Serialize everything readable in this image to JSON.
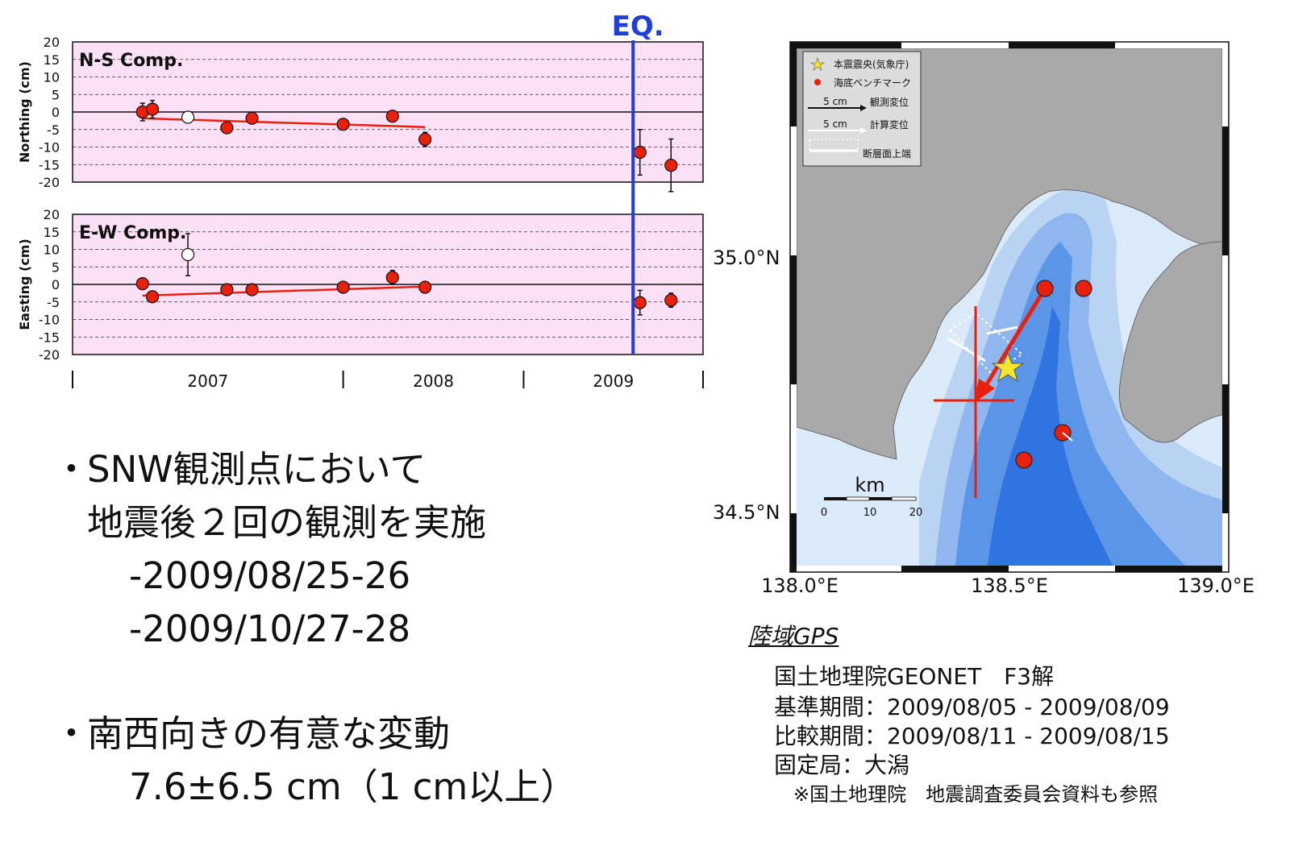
{
  "chart_data": [
    {
      "type": "scatter",
      "title": "N-S Comp.",
      "ylabel": "Northing (cm)",
      "ylim": [
        -20,
        20
      ],
      "yticks": [
        "20",
        "15",
        "10",
        "5",
        "0",
        "-5",
        "-10",
        "-15",
        "-20"
      ],
      "grid": true,
      "points": [
        {
          "x": "2006-11-20",
          "y": 0,
          "err": 2.5,
          "fill": "red"
        },
        {
          "x": "2006-12-10",
          "y": 0.8,
          "err": 2.5,
          "fill": "red"
        },
        {
          "x": "2007-02-20",
          "y": -1.5,
          "err": 1.0,
          "fill": "white"
        },
        {
          "x": "2007-05-10",
          "y": -4.5,
          "err": 1.0,
          "fill": "red"
        },
        {
          "x": "2007-06-30",
          "y": -1.8,
          "err": 1.0,
          "fill": "red"
        },
        {
          "x": "2008-01-01",
          "y": -3.5,
          "err": 1.0,
          "fill": "red"
        },
        {
          "x": "2008-04-10",
          "y": -1.2,
          "err": 1.5,
          "fill": "red"
        },
        {
          "x": "2008-06-15",
          "y": -7.8,
          "err": 2.0,
          "fill": "red"
        },
        {
          "x": "2009-08-25",
          "y": -11.5,
          "err": 6.5,
          "fill": "red"
        },
        {
          "x": "2009-10-27",
          "y": -15.2,
          "err": 7.5,
          "fill": "red"
        }
      ],
      "trend": {
        "x": [
          "2006-11-20",
          "2008-06-15"
        ],
        "y": [
          -1.8,
          -4.3
        ]
      }
    },
    {
      "type": "scatter",
      "title": "E-W Comp.",
      "ylabel": "Easting (cm)",
      "ylim": [
        -20,
        20
      ],
      "yticks": [
        "20",
        "15",
        "10",
        "5",
        "0",
        "-5",
        "-10",
        "-15",
        "-20"
      ],
      "grid": true,
      "xticks": [
        "2007",
        "2008",
        "2009"
      ],
      "points": [
        {
          "x": "2006-11-20",
          "y": 0.2,
          "err": 1.0,
          "fill": "red"
        },
        {
          "x": "2006-12-10",
          "y": -3.5,
          "err": 1.0,
          "fill": "red"
        },
        {
          "x": "2007-02-20",
          "y": 8.5,
          "err": 6.0,
          "fill": "white"
        },
        {
          "x": "2007-05-10",
          "y": -1.5,
          "err": 1.0,
          "fill": "red"
        },
        {
          "x": "2007-06-30",
          "y": -1.5,
          "err": 1.0,
          "fill": "red"
        },
        {
          "x": "2008-01-01",
          "y": -0.8,
          "err": 1.0,
          "fill": "red"
        },
        {
          "x": "2008-04-10",
          "y": 2.0,
          "err": 2.0,
          "fill": "red"
        },
        {
          "x": "2008-06-15",
          "y": -0.8,
          "err": 1.0,
          "fill": "red"
        },
        {
          "x": "2009-08-25",
          "y": -5.2,
          "err": 3.5,
          "fill": "red"
        },
        {
          "x": "2009-10-27",
          "y": -4.5,
          "err": 2.0,
          "fill": "red"
        }
      ],
      "trend": {
        "x": [
          "2006-11-20",
          "2008-06-15"
        ],
        "y": [
          -3.2,
          -0.6
        ]
      }
    }
  ],
  "eq_marker": {
    "label": "EQ.",
    "date": "2009-08-11",
    "color": "#1f3fd8"
  },
  "map": {
    "lat_labels": [
      "35.0°N",
      "34.5°N"
    ],
    "lon_labels": [
      "138.0°E",
      "138.5°E",
      "139.0°E"
    ],
    "legend": {
      "epicenter": "本震震央(気象庁)",
      "benchmark": "海底ベンチマーク",
      "obs_scale": "5 cm",
      "obs_label": "観測変位",
      "calc_scale": "5 cm",
      "calc_label": "計算変位",
      "fault_label": "断層面上端"
    },
    "scalebar": {
      "unit": "km",
      "ticks": [
        "0",
        "10",
        "20"
      ]
    }
  },
  "bullets": [
    {
      "marker": "・",
      "lines": [
        "SNW観測点において",
        "地震後２回の観測を実施",
        "-2009/08/25-26",
        "-2009/10/27-28"
      ]
    },
    {
      "marker": "・",
      "lines": [
        "南西向きの有意な変動",
        "7.6±6.5 cm（1 cm以上）"
      ]
    }
  ],
  "notes": {
    "heading": "陸域GPS",
    "lines": [
      "国土地理院GEONET　F3解",
      "基準期間：2009/08/05 - 2009/08/09",
      "比較期間：2009/08/11 - 2009/08/15",
      "固定局：大潟"
    ],
    "footnote": "※国土地理院　地震調査委員会資料も参照"
  },
  "colors": {
    "panel_bg": "#fbe0f6",
    "point": "#e8200c",
    "trend": "#e8200c",
    "land": "#a9a9a9"
  }
}
